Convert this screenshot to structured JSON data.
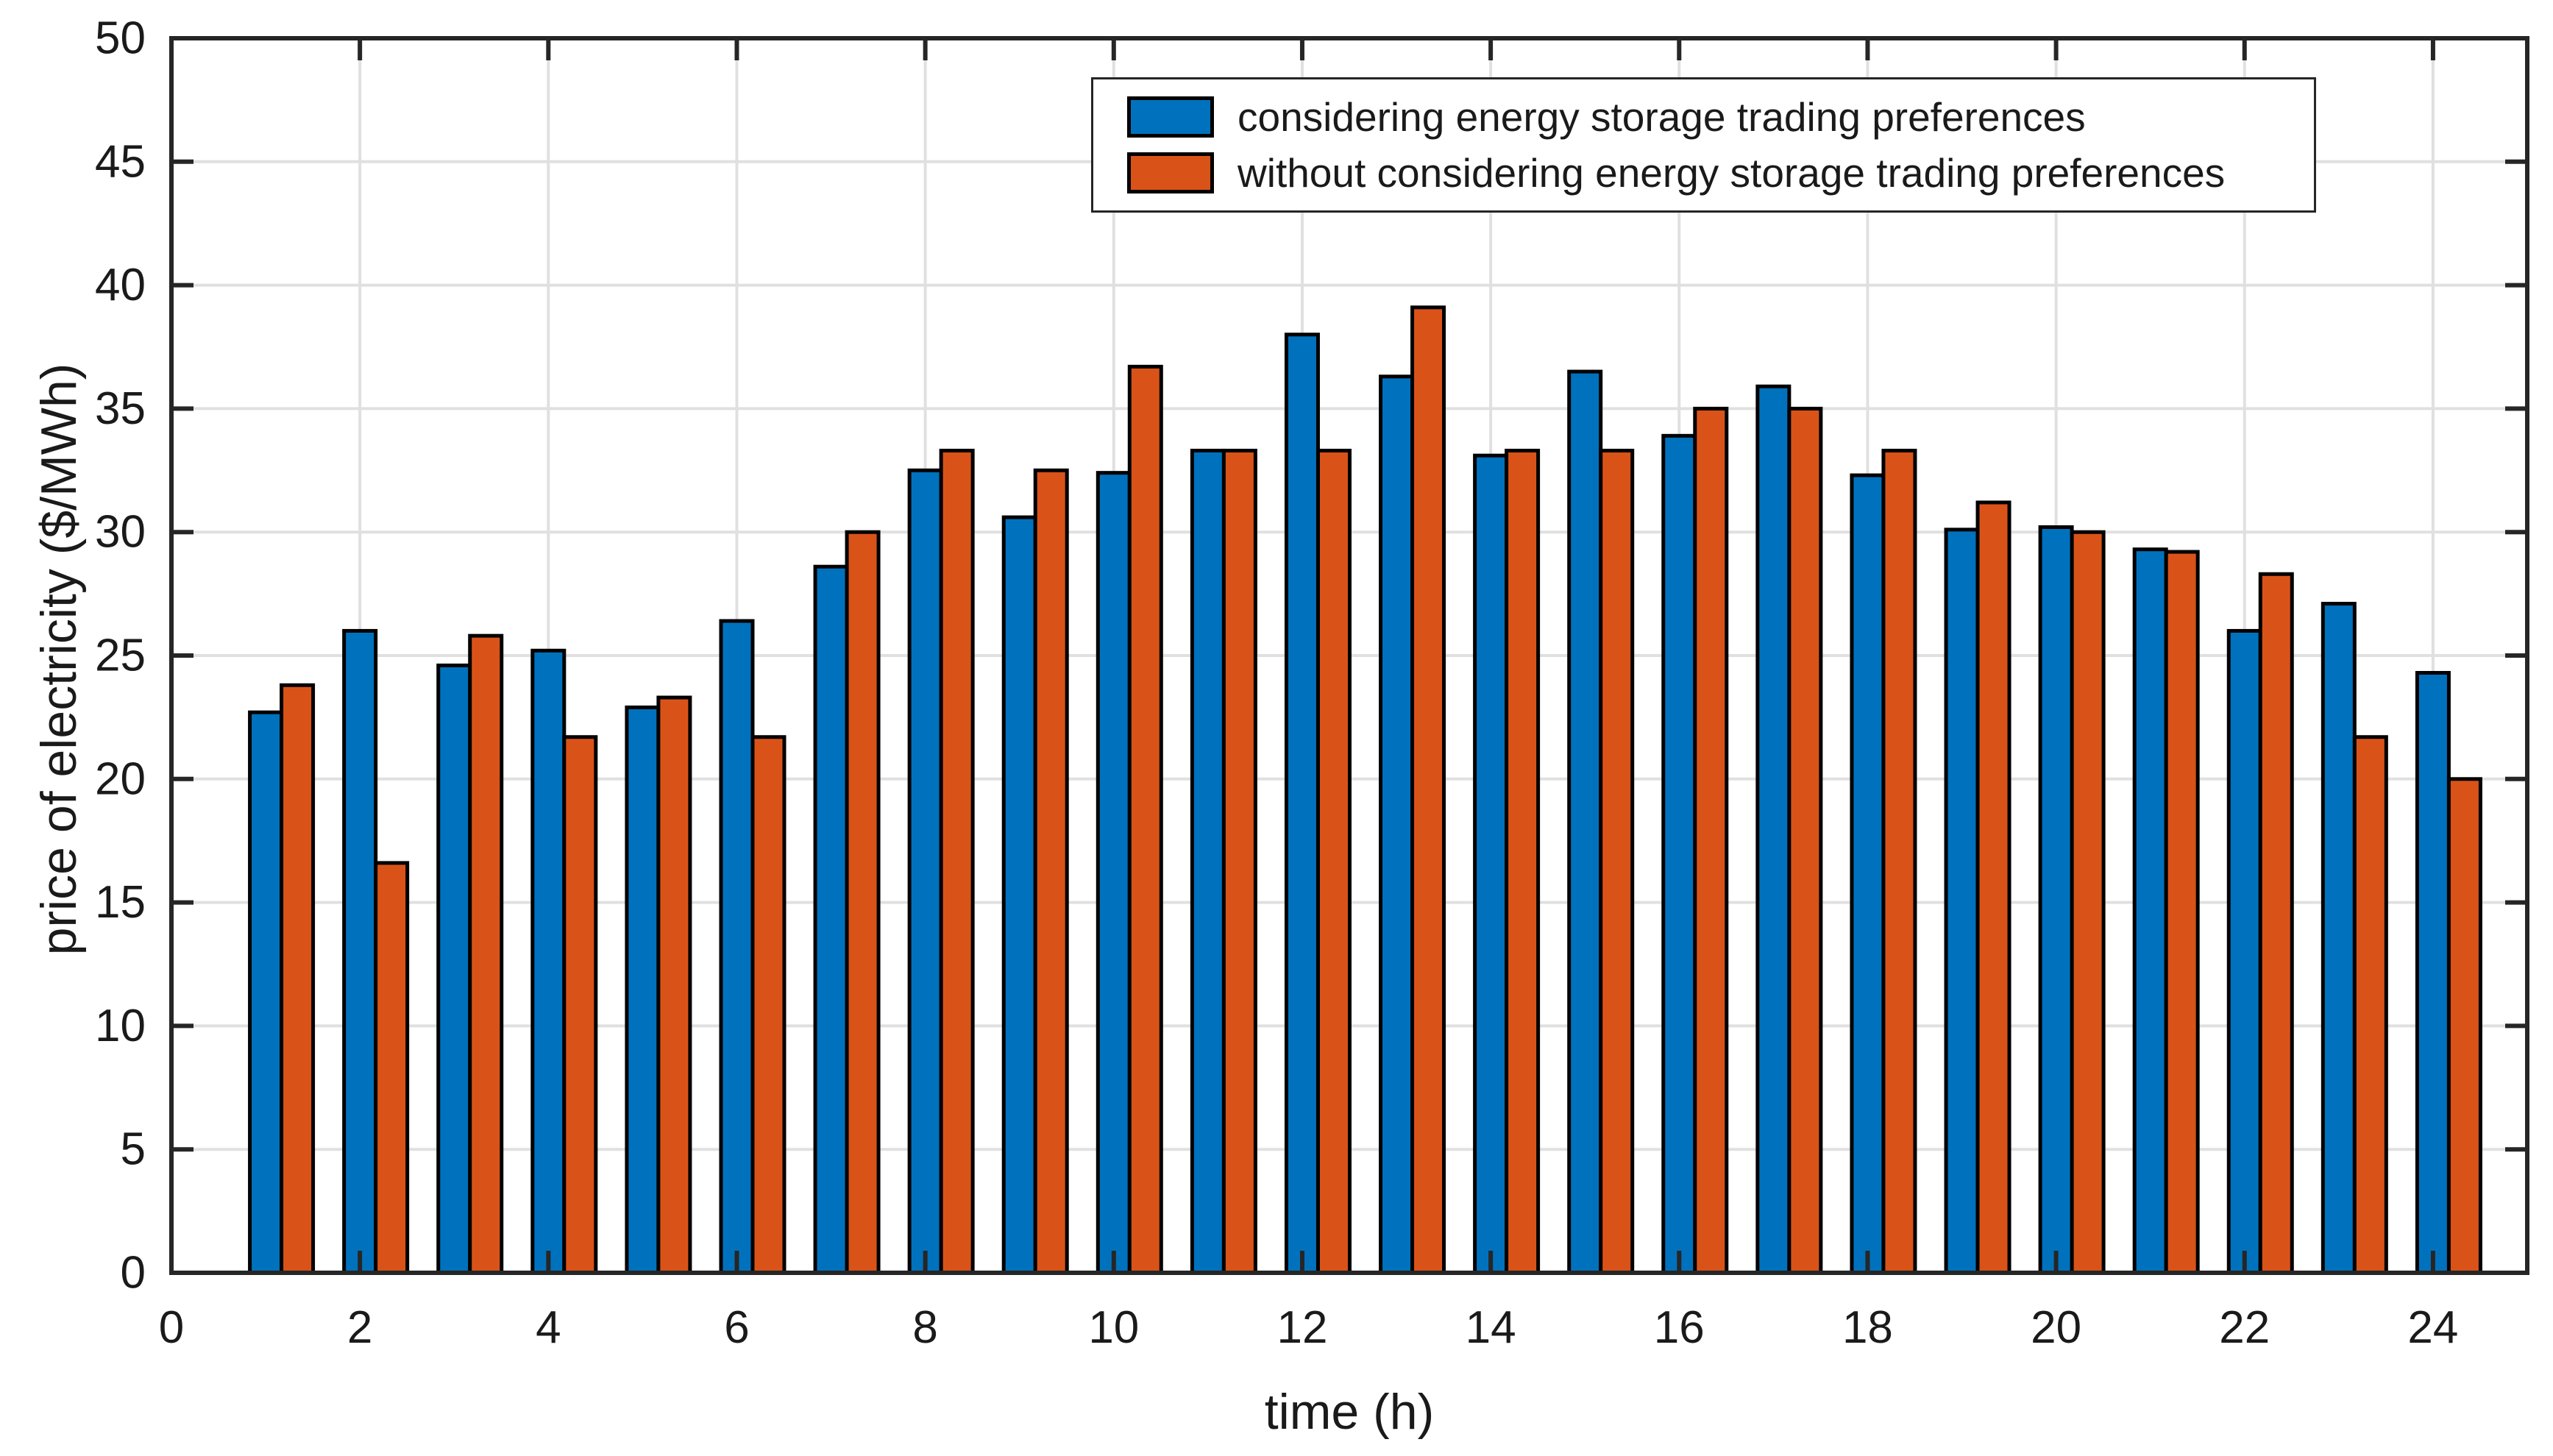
{
  "figure": {
    "background": "#ffffff",
    "xlabel": "time (h)",
    "ylabel": "price of electricity ($/MWh)"
  },
  "legend": {
    "position": "top-right",
    "entries": [
      {
        "label": "considering energy storage trading preferences",
        "color": "#0072BD"
      },
      {
        "label": "without considering energy storage trading preferences",
        "color": "#D95319"
      }
    ]
  },
  "chart_data": {
    "type": "bar",
    "title": "",
    "xlabel": "time (h)",
    "ylabel": "price of electricity ($/MWh)",
    "categories": [
      1,
      2,
      3,
      4,
      5,
      6,
      7,
      8,
      9,
      10,
      11,
      12,
      13,
      14,
      15,
      16,
      17,
      18,
      19,
      20,
      21,
      22,
      23,
      24
    ],
    "series": [
      {
        "name": "considering energy storage trading preferences",
        "color": "#0072BD",
        "values": [
          22.7,
          26.0,
          24.6,
          25.2,
          22.9,
          26.4,
          28.6,
          32.5,
          30.6,
          32.4,
          33.3,
          38.0,
          36.3,
          33.1,
          36.5,
          33.9,
          35.9,
          32.3,
          30.1,
          30.2,
          29.3,
          26.0,
          27.1,
          24.3
        ]
      },
      {
        "name": "without considering energy storage trading preferences",
        "color": "#D95319",
        "values": [
          23.8,
          16.6,
          25.8,
          21.7,
          23.3,
          21.7,
          30.0,
          33.3,
          32.5,
          36.7,
          33.3,
          33.3,
          39.1,
          33.3,
          33.3,
          35.0,
          35.0,
          33.3,
          31.2,
          30.0,
          29.2,
          28.3,
          21.7,
          20.0
        ]
      }
    ],
    "xlim": [
      0,
      25
    ],
    "ylim": [
      0,
      50
    ],
    "xticks": [
      0,
      2,
      4,
      6,
      8,
      10,
      12,
      14,
      16,
      18,
      20,
      22,
      24
    ],
    "yticks": [
      0,
      5,
      10,
      15,
      20,
      25,
      30,
      35,
      40,
      45,
      50
    ],
    "grid": true,
    "legend_position": "top-right",
    "bar_edge_color": "#000000",
    "grid_color": "#E0E0E0",
    "axis_color": "#262626",
    "tick_label_color": "#1a1a1a"
  }
}
